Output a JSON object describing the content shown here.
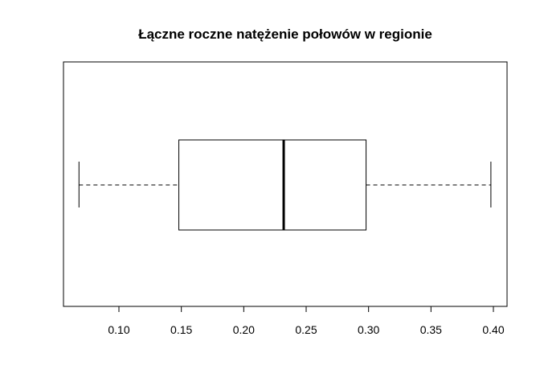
{
  "chart_data": {
    "type": "boxplot",
    "title": "Łączne roczne natężenie połowów w regionie",
    "orientation": "horizontal",
    "xlabel": "",
    "ylabel": "",
    "xlim": [
      0.055,
      0.41
    ],
    "ticks": [
      0.1,
      0.15,
      0.2,
      0.25,
      0.3,
      0.35,
      0.4
    ],
    "tick_labels": [
      "0.10",
      "0.15",
      "0.20",
      "0.25",
      "0.30",
      "0.35",
      "0.40"
    ],
    "box": {
      "min": 0.068,
      "q1": 0.148,
      "median": 0.232,
      "q3": 0.298,
      "max": 0.398
    },
    "grid": false,
    "legend": "none",
    "colors": {
      "stroke": "#000000",
      "box_fill": "#ffffff"
    }
  }
}
